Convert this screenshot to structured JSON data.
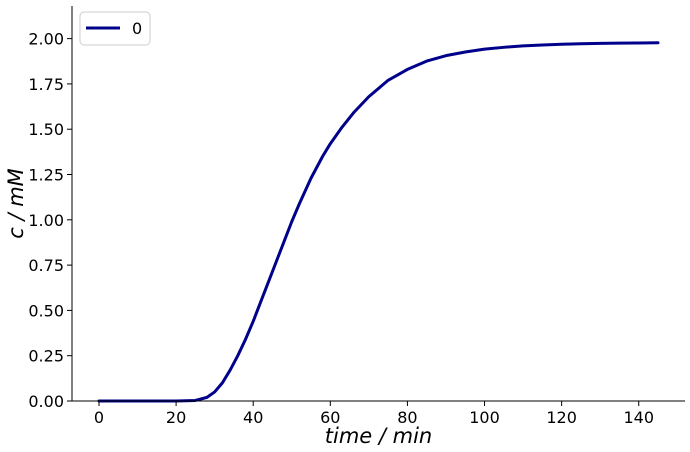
{
  "chart_data": {
    "type": "line",
    "title": "",
    "xlabel": "time / min",
    "ylabel": "c / mM",
    "xlim": [
      -7,
      152
    ],
    "ylim": [
      0,
      2.18
    ],
    "xticks": [
      0,
      20,
      40,
      60,
      80,
      100,
      120,
      140
    ],
    "yticks": [
      "0.00",
      "0.25",
      "0.50",
      "0.75",
      "1.00",
      "1.25",
      "1.50",
      "1.75",
      "2.00"
    ],
    "grid": false,
    "legend": {
      "position": "top-left"
    },
    "series": [
      {
        "name": "0",
        "color": "#00008b",
        "x": [
          0,
          10,
          20,
          25,
          28,
          30,
          32,
          34,
          36,
          38,
          40,
          42,
          44,
          46,
          48,
          50,
          52,
          55,
          58,
          60,
          63,
          66,
          70,
          75,
          80,
          85,
          90,
          95,
          100,
          105,
          110,
          115,
          120,
          125,
          130,
          135,
          140,
          145
        ],
        "y": [
          0,
          0,
          0,
          0.003,
          0.02,
          0.05,
          0.1,
          0.17,
          0.25,
          0.34,
          0.44,
          0.55,
          0.66,
          0.77,
          0.88,
          0.99,
          1.09,
          1.23,
          1.35,
          1.42,
          1.51,
          1.59,
          1.68,
          1.77,
          1.83,
          1.876,
          1.906,
          1.926,
          1.942,
          1.952,
          1.96,
          1.965,
          1.969,
          1.972,
          1.974,
          1.975,
          1.976,
          1.977
        ]
      }
    ]
  }
}
